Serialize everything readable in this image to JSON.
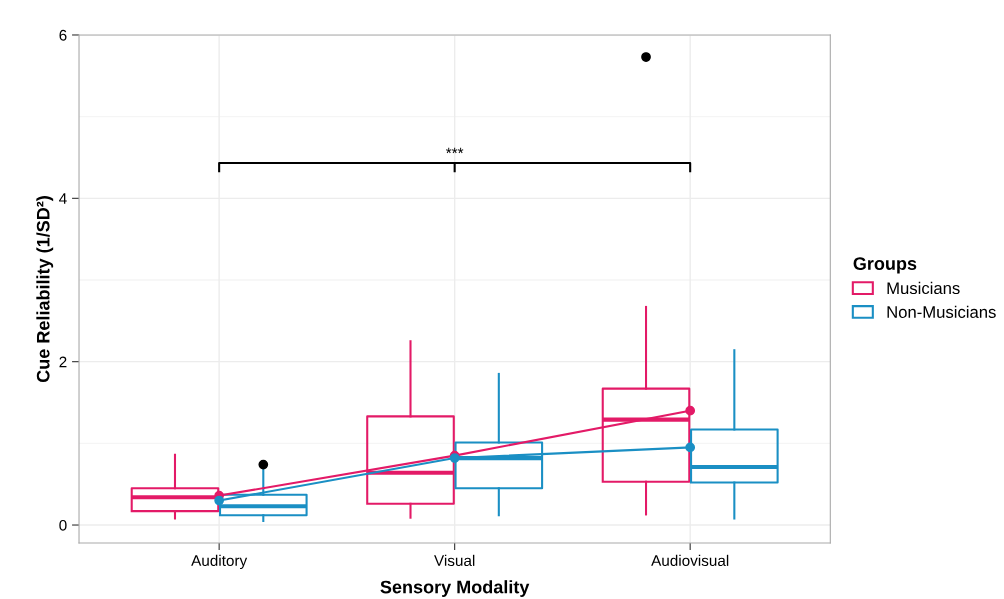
{
  "chart_data": {
    "type": "box",
    "xlabel": "Sensory Modality",
    "ylabel": "Cue Reliability (1/SD²)",
    "legend_title": "Groups",
    "categories": [
      "Auditory",
      "Visual",
      "Audiovisual"
    ],
    "ylim": [
      -0.22,
      6.0
    ],
    "yticks": [
      0,
      2,
      4,
      6
    ],
    "grid": true,
    "legend": "right",
    "series": [
      {
        "name": "Musicians",
        "type": "box",
        "color": "#e31a67",
        "boxes": [
          {
            "low": 0.08,
            "q1": 0.17,
            "median": 0.34,
            "q3": 0.45,
            "high": 0.86
          },
          {
            "low": 0.09,
            "q1": 0.26,
            "median": 0.64,
            "q3": 1.33,
            "high": 2.25
          },
          {
            "low": 0.13,
            "q1": 0.53,
            "median": 1.29,
            "q3": 1.67,
            "high": 2.67,
            "outliers": [
              5.73
            ]
          }
        ]
      },
      {
        "name": "Non-Musicians",
        "type": "box",
        "color": "#1a8fc4",
        "boxes": [
          {
            "low": 0.05,
            "q1": 0.12,
            "median": 0.23,
            "q3": 0.37,
            "high": 0.69,
            "outliers": [
              0.74
            ]
          },
          {
            "low": 0.12,
            "q1": 0.45,
            "median": 0.82,
            "q3": 1.01,
            "high": 1.85
          },
          {
            "low": 0.08,
            "q1": 0.52,
            "median": 0.71,
            "q3": 1.17,
            "high": 2.14
          }
        ]
      },
      {
        "type": "line",
        "color": "#e31a67",
        "marker": "circle",
        "values": [
          0.36,
          0.85,
          1.4
        ]
      },
      {
        "type": "line",
        "color": "#1a8fc4",
        "marker": "circle",
        "values": [
          0.3,
          0.82,
          0.95
        ]
      }
    ],
    "annotations": [
      "***"
    ]
  }
}
